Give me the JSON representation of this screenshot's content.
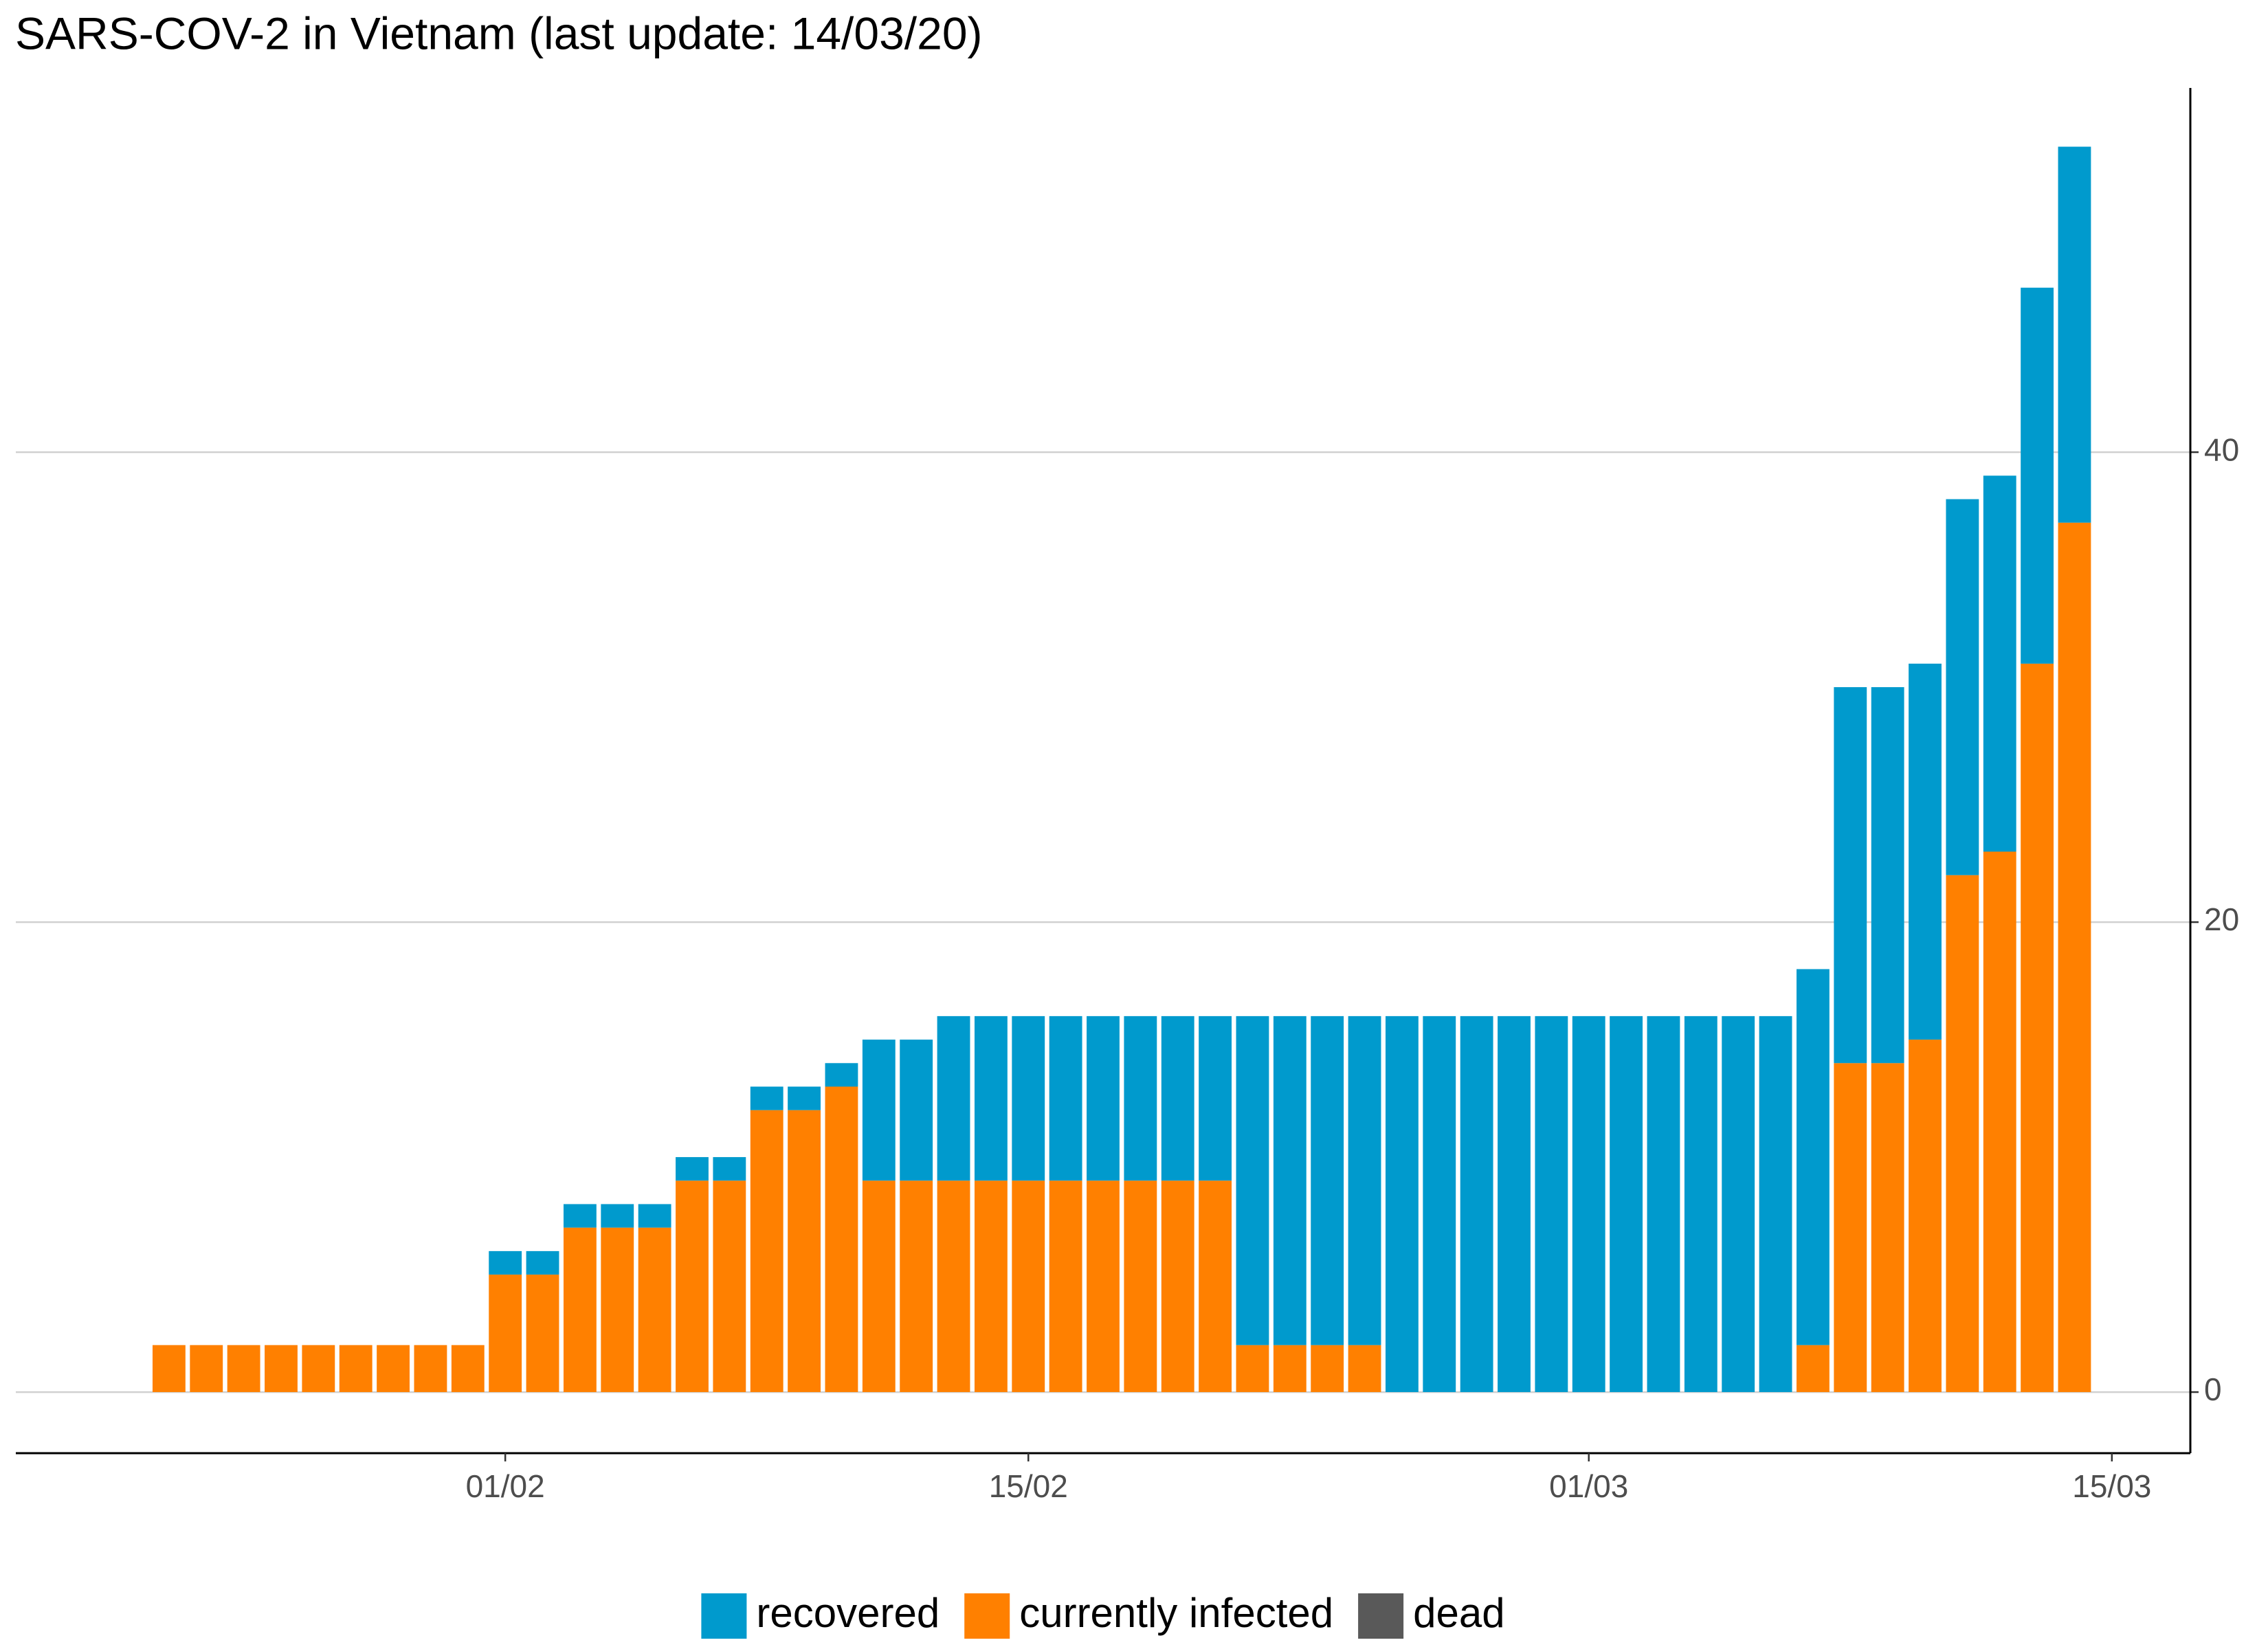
{
  "chart_data": {
    "type": "bar",
    "stacked": true,
    "title": "SARS-COV-2 in Vietnam (last update: 14/03/20)",
    "x": [
      "23/01",
      "24/01",
      "25/01",
      "26/01",
      "27/01",
      "28/01",
      "29/01",
      "30/01",
      "31/01",
      "01/02",
      "02/02",
      "03/02",
      "04/02",
      "05/02",
      "06/02",
      "07/02",
      "08/02",
      "09/02",
      "10/02",
      "11/02",
      "12/02",
      "13/02",
      "14/02",
      "15/02",
      "16/02",
      "17/02",
      "18/02",
      "19/02",
      "20/02",
      "21/02",
      "22/02",
      "23/02",
      "24/02",
      "25/02",
      "26/02",
      "27/02",
      "28/02",
      "29/02",
      "01/03",
      "02/03",
      "03/03",
      "04/03",
      "05/03",
      "06/03",
      "07/03",
      "08/03",
      "09/03",
      "10/03",
      "11/03",
      "12/03",
      "13/03",
      "14/03"
    ],
    "series": [
      {
        "name": "recovered",
        "color": "#009ACD",
        "values": [
          0,
          0,
          0,
          0,
          0,
          0,
          0,
          0,
          0,
          1,
          1,
          1,
          1,
          1,
          1,
          1,
          1,
          1,
          1,
          6,
          6,
          7,
          7,
          7,
          7,
          7,
          7,
          7,
          7,
          14,
          14,
          14,
          14,
          16,
          16,
          16,
          16,
          16,
          16,
          16,
          16,
          16,
          16,
          16,
          16,
          16,
          16,
          16,
          16,
          16,
          16,
          16
        ]
      },
      {
        "name": "currently infected",
        "color": "#FF8000",
        "values": [
          2,
          2,
          2,
          2,
          2,
          2,
          2,
          2,
          2,
          5,
          5,
          7,
          7,
          7,
          9,
          9,
          12,
          12,
          13,
          9,
          9,
          9,
          9,
          9,
          9,
          9,
          9,
          9,
          9,
          2,
          2,
          2,
          2,
          0,
          0,
          0,
          0,
          0,
          0,
          0,
          0,
          0,
          0,
          0,
          2,
          14,
          14,
          15,
          22,
          23,
          31,
          37
        ]
      },
      {
        "name": "dead",
        "color": "#595959",
        "values": [
          0,
          0,
          0,
          0,
          0,
          0,
          0,
          0,
          0,
          0,
          0,
          0,
          0,
          0,
          0,
          0,
          0,
          0,
          0,
          0,
          0,
          0,
          0,
          0,
          0,
          0,
          0,
          0,
          0,
          0,
          0,
          0,
          0,
          0,
          0,
          0,
          0,
          0,
          0,
          0,
          0,
          0,
          0,
          0,
          0,
          0,
          0,
          0,
          0,
          0,
          0,
          0
        ]
      }
    ],
    "xticks": [
      "01/02",
      "15/02",
      "01/03",
      "15/03"
    ],
    "ylim": [
      -2.6,
      55.5
    ],
    "yticks": [
      0,
      20,
      40
    ],
    "grid": true,
    "y_axis_side": "right",
    "legend": "bottom"
  }
}
